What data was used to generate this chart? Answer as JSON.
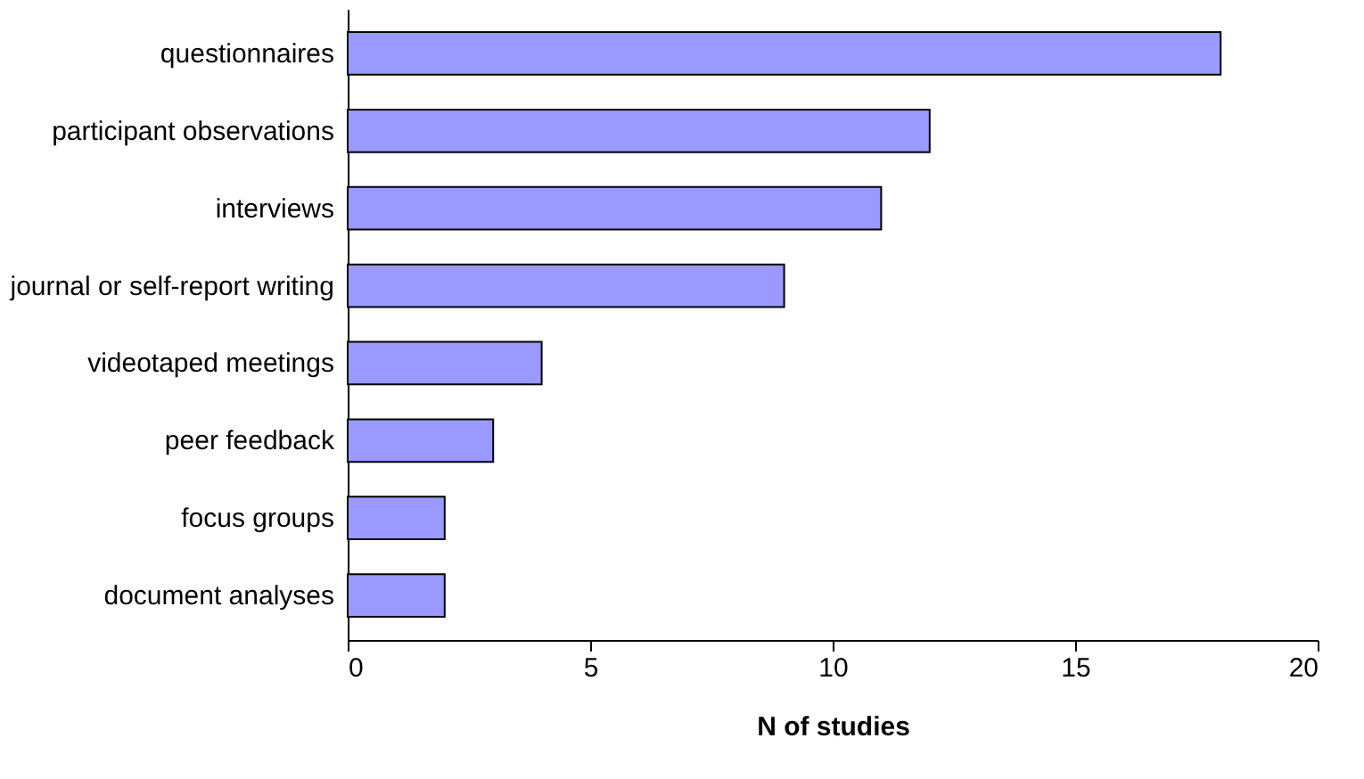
{
  "chart_data": {
    "type": "bar",
    "orientation": "horizontal",
    "xlabel": "N of studies",
    "categories": [
      "questionnaires",
      "participant observations",
      "interviews",
      "journal or self-report writing",
      "videotaped meetings",
      "peer feedback",
      "focus groups",
      "document analyses"
    ],
    "values": [
      18,
      12,
      11,
      9,
      4,
      3,
      2,
      2
    ],
    "color": "#9999ff",
    "xlim": [
      0,
      20
    ],
    "xticks": [
      0,
      5,
      10,
      15,
      20
    ],
    "grid": false
  }
}
